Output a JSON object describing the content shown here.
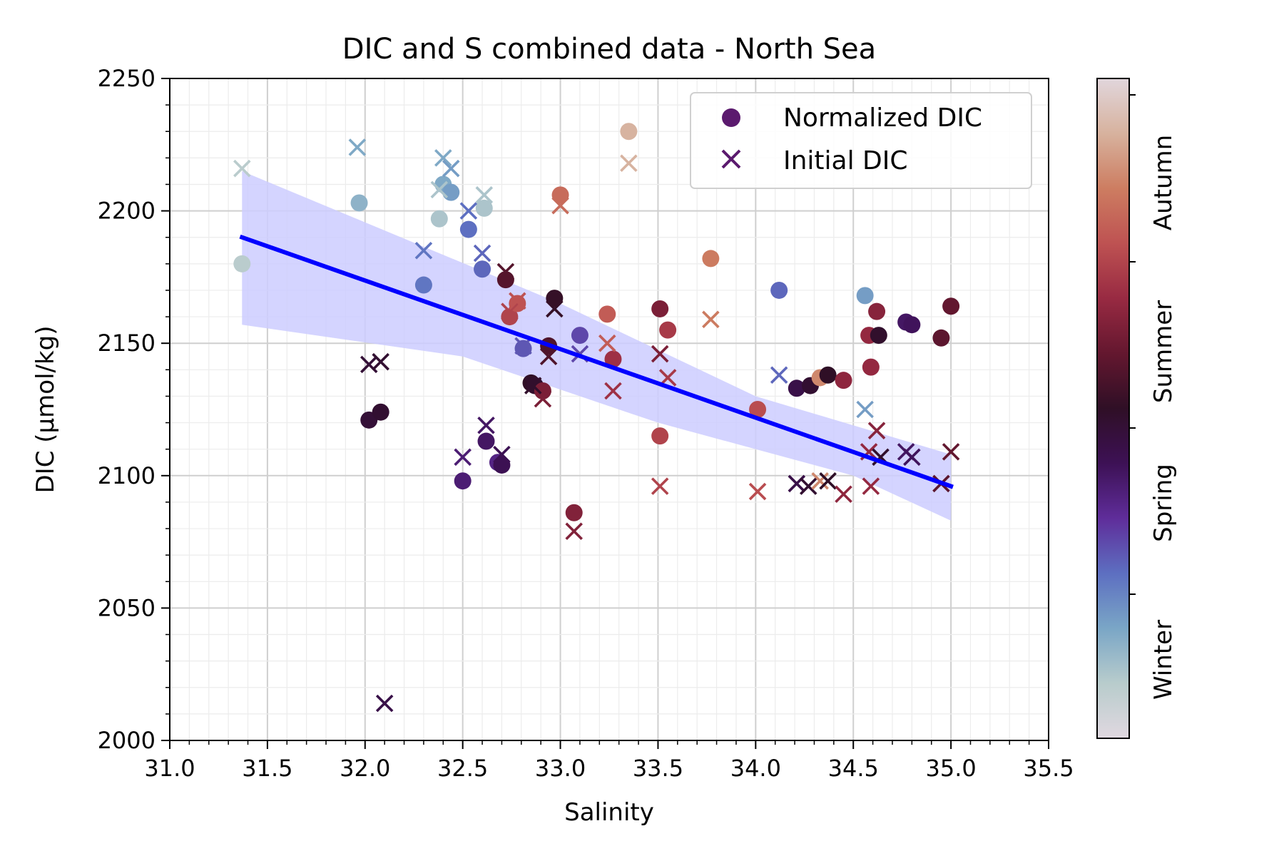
{
  "chart_data": {
    "type": "scatter",
    "title": "DIC and S combined data - North Sea",
    "xlabel": "Salinity",
    "ylabel": "DIC (µmol/kg)",
    "xlim": [
      31.0,
      35.5
    ],
    "ylim": [
      2000,
      2250
    ],
    "x_ticks": [
      "31.0",
      "31.5",
      "32.0",
      "32.5",
      "33.0",
      "33.5",
      "34.0",
      "34.5",
      "35.0",
      "35.5"
    ],
    "y_ticks": [
      "2000",
      "2050",
      "2100",
      "2150",
      "2200",
      "2250"
    ],
    "grid": true,
    "legend_position": "top-right",
    "legend": [
      {
        "label": "Normalized DIC",
        "marker": "circle"
      },
      {
        "label": "Initial DIC",
        "marker": "x"
      }
    ],
    "colorbar": {
      "labels": [
        "Winter",
        "Spring",
        "Summer",
        "Autumn"
      ],
      "colors": [
        "#e0d8e0",
        "#b8cccc",
        "#7aa6c6",
        "#5d6fc1",
        "#5f2d9a",
        "#3d1155",
        "#2f0f26",
        "#64172f",
        "#982a42",
        "#be5252",
        "#cd7d61",
        "#d7b29e",
        "#e1d6dc"
      ]
    },
    "regression": {
      "color": "#0000ff",
      "band_color": "#ccccff",
      "line": [
        [
          31.37,
          2190
        ],
        [
          35.0,
          2096
        ]
      ],
      "band_upper": [
        [
          31.37,
          2215
        ],
        [
          33.0,
          2165
        ],
        [
          34.0,
          2130
        ],
        [
          35.0,
          2108
        ]
      ],
      "band_lower": [
        [
          31.37,
          2157
        ],
        [
          32.5,
          2145
        ],
        [
          33.5,
          2120
        ],
        [
          34.5,
          2100
        ],
        [
          35.0,
          2083
        ]
      ]
    },
    "series": [
      {
        "name": "Normalized DIC",
        "marker": "circle",
        "points": [
          {
            "x": 31.37,
            "y": 2180,
            "c": 0.08
          },
          {
            "x": 31.97,
            "y": 2203,
            "c": 0.14
          },
          {
            "x": 32.02,
            "y": 2121,
            "c": 0.47
          },
          {
            "x": 32.08,
            "y": 2124,
            "c": 0.48
          },
          {
            "x": 32.3,
            "y": 2172,
            "c": 0.24
          },
          {
            "x": 32.38,
            "y": 2197,
            "c": 0.1
          },
          {
            "x": 32.4,
            "y": 2210,
            "c": 0.16
          },
          {
            "x": 32.44,
            "y": 2207,
            "c": 0.18
          },
          {
            "x": 32.5,
            "y": 2098,
            "c": 0.38
          },
          {
            "x": 32.53,
            "y": 2193,
            "c": 0.25
          },
          {
            "x": 32.61,
            "y": 2201,
            "c": 0.1
          },
          {
            "x": 32.6,
            "y": 2178,
            "c": 0.26
          },
          {
            "x": 32.62,
            "y": 2113,
            "c": 0.4
          },
          {
            "x": 32.68,
            "y": 2105,
            "c": 0.36
          },
          {
            "x": 32.7,
            "y": 2104,
            "c": 0.42
          },
          {
            "x": 32.72,
            "y": 2174,
            "c": 0.56
          },
          {
            "x": 32.74,
            "y": 2160,
            "c": 0.72
          },
          {
            "x": 32.78,
            "y": 2165,
            "c": 0.75
          },
          {
            "x": 32.81,
            "y": 2148,
            "c": 0.28
          },
          {
            "x": 32.85,
            "y": 2135,
            "c": 0.5
          },
          {
            "x": 32.87,
            "y": 2134,
            "c": 0.49
          },
          {
            "x": 32.91,
            "y": 2132,
            "c": 0.62
          },
          {
            "x": 32.94,
            "y": 2149,
            "c": 0.55
          },
          {
            "x": 32.97,
            "y": 2167,
            "c": 0.51
          },
          {
            "x": 33.0,
            "y": 2206,
            "c": 0.8
          },
          {
            "x": 33.07,
            "y": 2086,
            "c": 0.63
          },
          {
            "x": 33.1,
            "y": 2153,
            "c": 0.3
          },
          {
            "x": 33.24,
            "y": 2161,
            "c": 0.77
          },
          {
            "x": 33.27,
            "y": 2144,
            "c": 0.68
          },
          {
            "x": 33.35,
            "y": 2230,
            "c": 0.92
          },
          {
            "x": 33.51,
            "y": 2163,
            "c": 0.62
          },
          {
            "x": 33.51,
            "y": 2115,
            "c": 0.72
          },
          {
            "x": 33.55,
            "y": 2155,
            "c": 0.7
          },
          {
            "x": 33.77,
            "y": 2182,
            "c": 0.83
          },
          {
            "x": 34.01,
            "y": 2125,
            "c": 0.74
          },
          {
            "x": 34.12,
            "y": 2170,
            "c": 0.26
          },
          {
            "x": 34.21,
            "y": 2133,
            "c": 0.44
          },
          {
            "x": 34.28,
            "y": 2134,
            "c": 0.48
          },
          {
            "x": 34.33,
            "y": 2137,
            "c": 0.85
          },
          {
            "x": 34.37,
            "y": 2138,
            "c": 0.5
          },
          {
            "x": 34.45,
            "y": 2136,
            "c": 0.65
          },
          {
            "x": 34.56,
            "y": 2168,
            "c": 0.18
          },
          {
            "x": 34.58,
            "y": 2153,
            "c": 0.66
          },
          {
            "x": 34.59,
            "y": 2141,
            "c": 0.66
          },
          {
            "x": 34.62,
            "y": 2162,
            "c": 0.64
          },
          {
            "x": 34.63,
            "y": 2153,
            "c": 0.49
          },
          {
            "x": 34.77,
            "y": 2158,
            "c": 0.4
          },
          {
            "x": 34.8,
            "y": 2157,
            "c": 0.41
          },
          {
            "x": 34.95,
            "y": 2152,
            "c": 0.57
          },
          {
            "x": 35.0,
            "y": 2164,
            "c": 0.58
          }
        ]
      },
      {
        "name": "Initial DIC",
        "marker": "x",
        "points": [
          {
            "x": 31.37,
            "y": 2216,
            "c": 0.08
          },
          {
            "x": 31.96,
            "y": 2224,
            "c": 0.16
          },
          {
            "x": 32.02,
            "y": 2142,
            "c": 0.47
          },
          {
            "x": 32.08,
            "y": 2143,
            "c": 0.48
          },
          {
            "x": 32.1,
            "y": 2014,
            "c": 0.44
          },
          {
            "x": 32.3,
            "y": 2185,
            "c": 0.24
          },
          {
            "x": 32.38,
            "y": 2208,
            "c": 0.1
          },
          {
            "x": 32.4,
            "y": 2220,
            "c": 0.16
          },
          {
            "x": 32.44,
            "y": 2216,
            "c": 0.18
          },
          {
            "x": 32.5,
            "y": 2107,
            "c": 0.38
          },
          {
            "x": 32.53,
            "y": 2200,
            "c": 0.25
          },
          {
            "x": 32.61,
            "y": 2206,
            "c": 0.1
          },
          {
            "x": 32.6,
            "y": 2184,
            "c": 0.26
          },
          {
            "x": 32.62,
            "y": 2119,
            "c": 0.4
          },
          {
            "x": 32.7,
            "y": 2108,
            "c": 0.42
          },
          {
            "x": 32.72,
            "y": 2177,
            "c": 0.56
          },
          {
            "x": 32.74,
            "y": 2162,
            "c": 0.72
          },
          {
            "x": 32.78,
            "y": 2166,
            "c": 0.75
          },
          {
            "x": 32.81,
            "y": 2149,
            "c": 0.28
          },
          {
            "x": 32.86,
            "y": 2134,
            "c": 0.49
          },
          {
            "x": 32.91,
            "y": 2129,
            "c": 0.62
          },
          {
            "x": 32.94,
            "y": 2145,
            "c": 0.55
          },
          {
            "x": 32.97,
            "y": 2163,
            "c": 0.51
          },
          {
            "x": 33.0,
            "y": 2202,
            "c": 0.8
          },
          {
            "x": 33.07,
            "y": 2079,
            "c": 0.63
          },
          {
            "x": 33.1,
            "y": 2146,
            "c": 0.3
          },
          {
            "x": 33.24,
            "y": 2150,
            "c": 0.77
          },
          {
            "x": 33.27,
            "y": 2132,
            "c": 0.68
          },
          {
            "x": 33.35,
            "y": 2218,
            "c": 0.92
          },
          {
            "x": 33.51,
            "y": 2146,
            "c": 0.62
          },
          {
            "x": 33.51,
            "y": 2096,
            "c": 0.72
          },
          {
            "x": 33.55,
            "y": 2137,
            "c": 0.7
          },
          {
            "x": 33.77,
            "y": 2159,
            "c": 0.83
          },
          {
            "x": 34.01,
            "y": 2094,
            "c": 0.74
          },
          {
            "x": 34.12,
            "y": 2138,
            "c": 0.26
          },
          {
            "x": 34.21,
            "y": 2097,
            "c": 0.44
          },
          {
            "x": 34.27,
            "y": 2096,
            "c": 0.48
          },
          {
            "x": 34.33,
            "y": 2098,
            "c": 0.85
          },
          {
            "x": 34.37,
            "y": 2098,
            "c": 0.5
          },
          {
            "x": 34.45,
            "y": 2093,
            "c": 0.65
          },
          {
            "x": 34.56,
            "y": 2125,
            "c": 0.18
          },
          {
            "x": 34.58,
            "y": 2109,
            "c": 0.66
          },
          {
            "x": 34.59,
            "y": 2096,
            "c": 0.66
          },
          {
            "x": 34.62,
            "y": 2117,
            "c": 0.64
          },
          {
            "x": 34.64,
            "y": 2107,
            "c": 0.49
          },
          {
            "x": 34.77,
            "y": 2109,
            "c": 0.4
          },
          {
            "x": 34.8,
            "y": 2107,
            "c": 0.41
          },
          {
            "x": 34.95,
            "y": 2097,
            "c": 0.57
          },
          {
            "x": 35.0,
            "y": 2109,
            "c": 0.58
          }
        ]
      }
    ]
  }
}
